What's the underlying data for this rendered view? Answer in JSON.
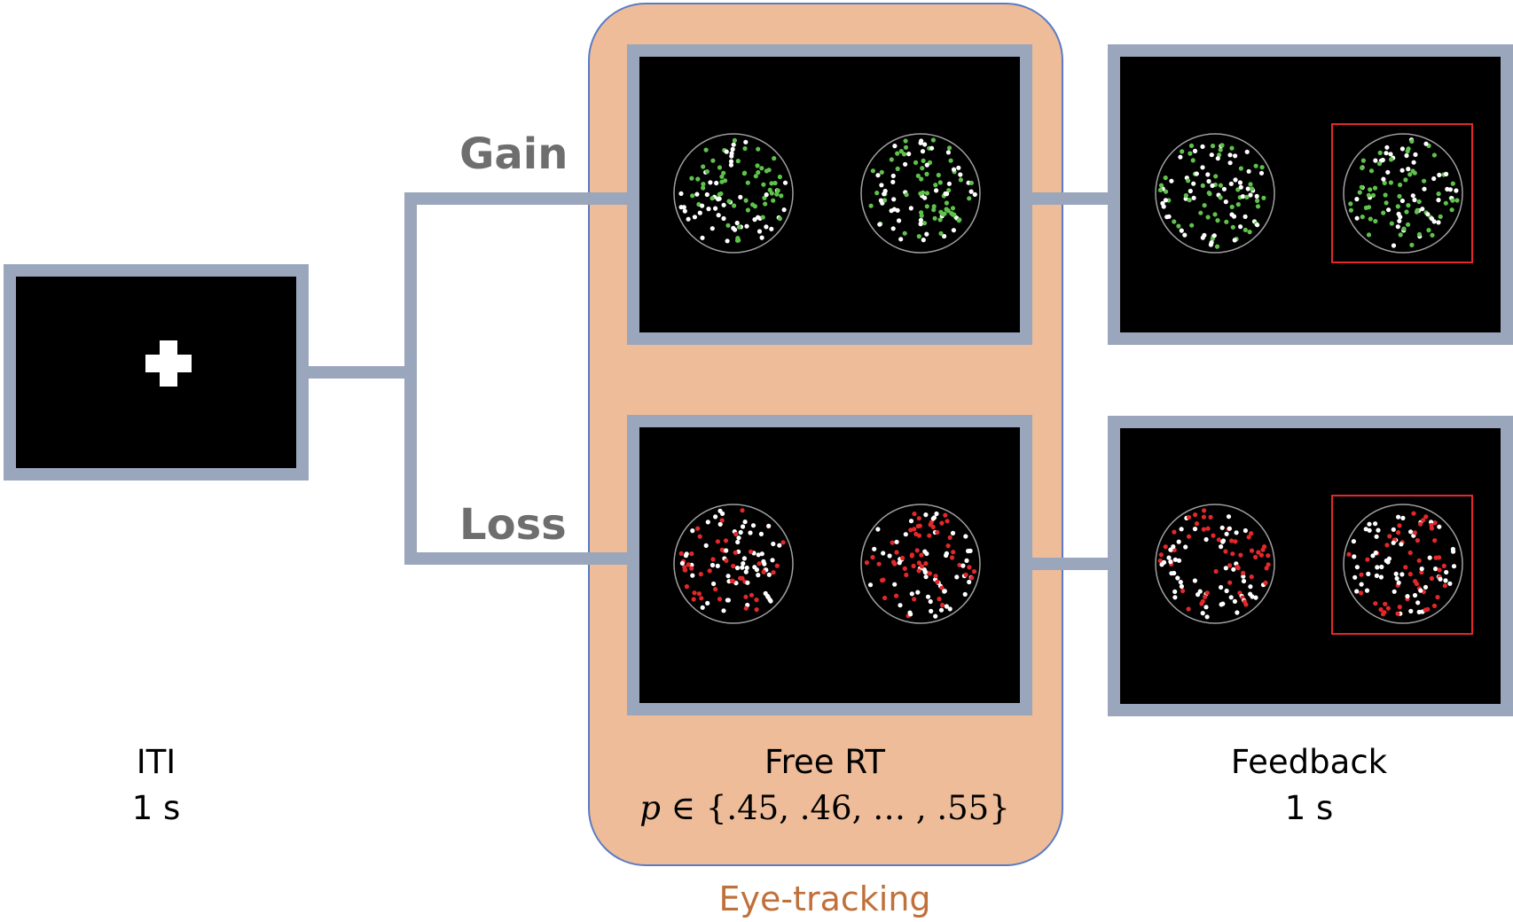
{
  "colors": {
    "frame": "#9aa6bb",
    "screen": "#000000",
    "eye_tracking_bg": "#eebc98",
    "eye_tracking_border": "#5a7bc4",
    "eye_tracking_text": "#c0703a",
    "label_text": "#6e6e6e",
    "gain_dot": "#5ec24b",
    "loss_dot": "#e3282a",
    "neutral_dot": "#ffffff",
    "circle_outline": "#a0a0a0",
    "selection_box": "#e3282a"
  },
  "stages": {
    "iti": {
      "title": "ITI",
      "duration": "1 s"
    },
    "free_rt": {
      "title": "Free RT",
      "p_symbol": "p",
      "p_rest": " ∈ {.45, .46, … , .55}"
    },
    "feedback": {
      "title": "Feedback",
      "duration": "1 s"
    }
  },
  "branches": {
    "gain": "Gain",
    "loss": "Loss"
  },
  "eye_tracking": "Eye-tracking",
  "icons": {
    "fixation": "fixation-cross-icon",
    "dot_cloud": "dot-cloud-icon",
    "selection": "selection-box-icon"
  }
}
